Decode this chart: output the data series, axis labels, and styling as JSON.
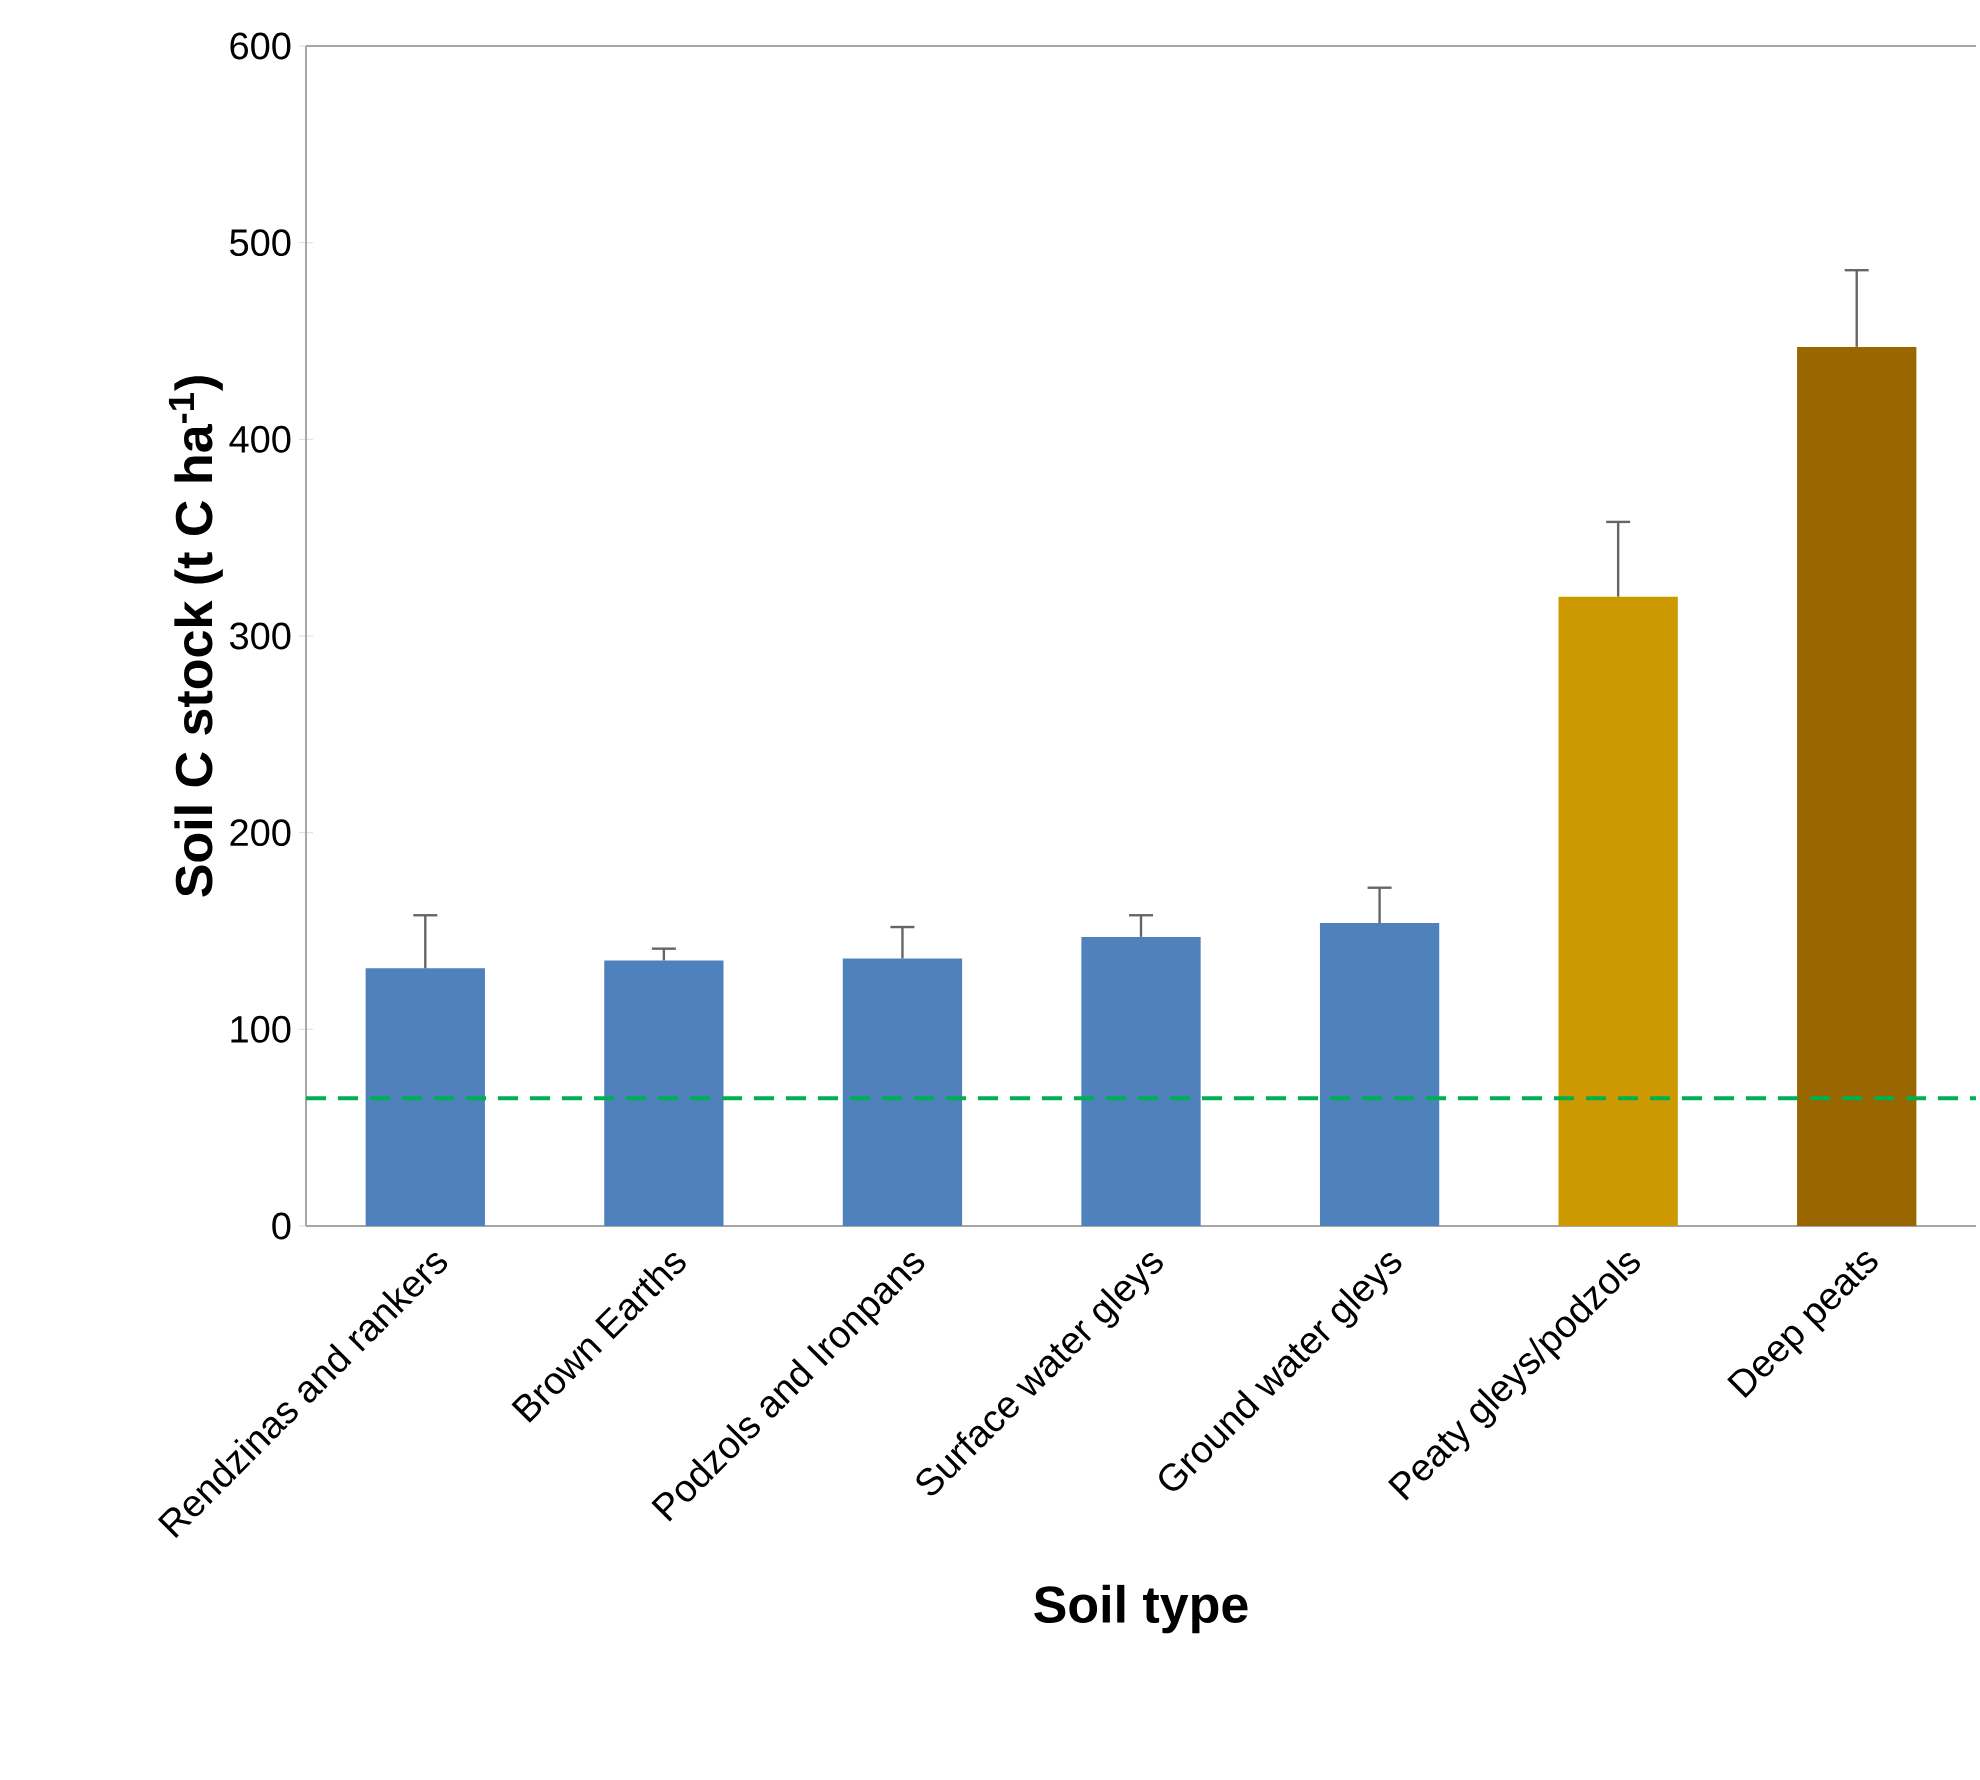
{
  "chart_data": {
    "type": "bar",
    "xlabel": "Soil type",
    "ylabel": "Soil C stock (t C ha$^{-1}$)",
    "categories": [
      "Rendzinas and rankers",
      "Brown Earths",
      "Podzols and Ironpans",
      "Surface water gleys",
      "Ground water gleys",
      "Peaty gleys/podzols",
      "Deep peats"
    ],
    "values": [
      131,
      135,
      136,
      147,
      154,
      320,
      447
    ],
    "errors": [
      27,
      6,
      16,
      11,
      18,
      38,
      39
    ],
    "colors": [
      "#4f81bd",
      "#4f81bd",
      "#4f81bd",
      "#4f81bd",
      "#4f81bd",
      "#cc9900",
      "#996600"
    ],
    "ylim": [
      0,
      600
    ],
    "yticks": [
      0,
      100,
      200,
      300,
      400,
      500,
      600
    ],
    "ref_lines": [
      {
        "axis": "y",
        "value": 65,
        "color": "#00b050",
        "line_style": "dashed"
      }
    ],
    "grid": false
  }
}
